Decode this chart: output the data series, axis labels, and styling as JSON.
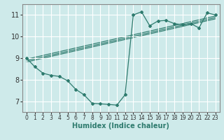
{
  "xlabel": "Humidex (Indice chaleur)",
  "xlim": [
    -0.5,
    23.5
  ],
  "ylim": [
    6.5,
    11.5
  ],
  "xticks": [
    0,
    1,
    2,
    3,
    4,
    5,
    6,
    7,
    8,
    9,
    10,
    11,
    12,
    13,
    14,
    15,
    16,
    17,
    18,
    19,
    20,
    21,
    22,
    23
  ],
  "yticks": [
    7,
    8,
    9,
    10,
    11
  ],
  "bg_color": "#ceeaea",
  "grid_color": "#ffffff",
  "line_color": "#2e7b6e",
  "wiggly": {
    "x": [
      0,
      1,
      2,
      3,
      4,
      5,
      6,
      7,
      8,
      9,
      10,
      11,
      12,
      13,
      14,
      15,
      16,
      17,
      18,
      19,
      20,
      21,
      22,
      23
    ],
    "y": [
      9.0,
      8.6,
      8.3,
      8.2,
      8.15,
      7.95,
      7.55,
      7.3,
      6.9,
      6.88,
      6.85,
      6.82,
      7.3,
      11.0,
      11.15,
      10.5,
      10.72,
      10.75,
      10.6,
      10.55,
      10.6,
      10.4,
      11.1,
      11.0
    ]
  },
  "straight_lines": [
    {
      "x": [
        0,
        23
      ],
      "y": [
        8.82,
        10.82
      ]
    },
    {
      "x": [
        0,
        23
      ],
      "y": [
        8.88,
        10.88
      ]
    },
    {
      "x": [
        0,
        23
      ],
      "y": [
        8.95,
        10.95
      ]
    }
  ]
}
